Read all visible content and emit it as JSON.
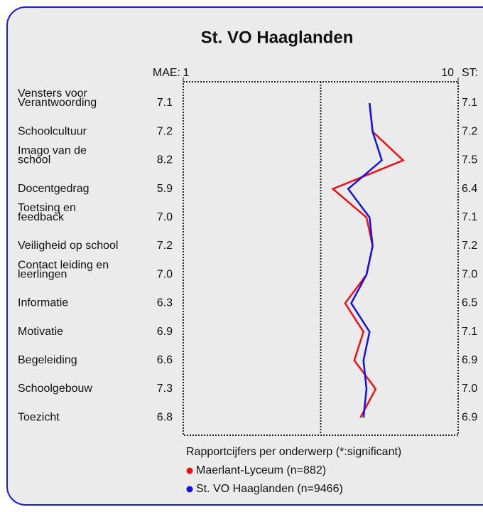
{
  "chart_data": {
    "type": "line",
    "title": "St. VO Haaglanden",
    "categories": [
      [
        "Vensters voor",
        "Verantwoording"
      ],
      [
        "Schoolcultuur"
      ],
      [
        "Imago van de",
        "school"
      ],
      [
        "Docentgedrag"
      ],
      [
        "Toetsing en",
        "feedback"
      ],
      [
        "Veiligheid op school"
      ],
      [
        "Contact leiding en",
        "leerlingen"
      ],
      [
        "Informatie"
      ],
      [
        "Motivatie"
      ],
      [
        "Begeleiding"
      ],
      [
        "Schoolgebouw"
      ],
      [
        "Toezicht"
      ]
    ],
    "left_header": "MAE:",
    "right_header": "ST:",
    "series": [
      {
        "name": "Maerlant-Lyceum (n=882)",
        "color": "#ee1111",
        "values": [
          7.1,
          7.2,
          8.2,
          5.9,
          7.0,
          7.2,
          7.0,
          6.3,
          6.9,
          6.6,
          7.3,
          6.8
        ],
        "value_labels": [
          "7.1",
          "7.2",
          "8.2",
          "5.9",
          "7.0",
          "7.2",
          "7.0",
          "6.3",
          "6.9",
          "6.6",
          "7.3",
          "6.8"
        ]
      },
      {
        "name": "St. VO Haaglanden (n=9466)",
        "color": "#1111ee",
        "values": [
          7.1,
          7.2,
          7.5,
          6.4,
          7.1,
          7.2,
          7.0,
          6.5,
          7.1,
          6.9,
          7.0,
          6.9
        ],
        "value_labels": [
          "7.1",
          "7.2",
          "7.5",
          "6.4",
          "7.1",
          "7.2",
          "7.0",
          "6.5",
          "7.1",
          "6.9",
          "7.0",
          "6.9"
        ]
      }
    ],
    "xlim": [
      1,
      10
    ],
    "xticks": [
      1,
      10
    ],
    "reference_line": 5.5,
    "legend_title": "Rapportcijfers per onderwerp (*:significant)",
    "legend": "bottom"
  }
}
